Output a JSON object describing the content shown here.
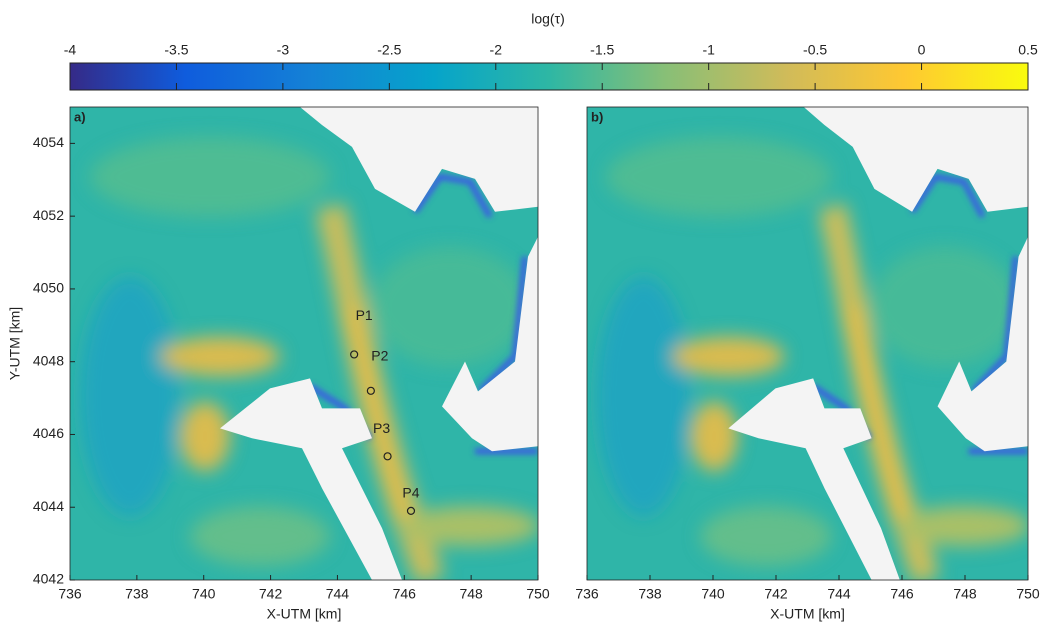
{
  "colorbar": {
    "label": "log(τ)",
    "lim": [
      -4,
      0.5
    ],
    "ticks": [
      -4,
      -3.5,
      -3,
      -2.5,
      -2,
      -1.5,
      -1,
      -0.5,
      0,
      0.5
    ]
  },
  "chart_data": [
    {
      "type": "heatmap",
      "panel_label": "a)",
      "xlabel": "X-UTM [km]",
      "ylabel": "Y-UTM [km]",
      "xlim": [
        736,
        750
      ],
      "ylim": [
        4042,
        4055
      ],
      "xticks": [
        736,
        738,
        740,
        742,
        744,
        746,
        748,
        750
      ],
      "yticks": [
        4042,
        4044,
        4046,
        4048,
        4050,
        4052,
        4054
      ],
      "points": {
        "labels": [
          "P1",
          "P2",
          "P3",
          "P4"
        ],
        "x": [
          744.5,
          745.0,
          745.5,
          746.2
        ],
        "y": [
          4048.2,
          4047.2,
          4045.4,
          4043.9
        ]
      }
    },
    {
      "type": "heatmap",
      "panel_label": "b)",
      "xlabel": "X-UTM [km]",
      "xlim": [
        736,
        750
      ],
      "ylim": [
        4042,
        4055
      ],
      "xticks": [
        736,
        738,
        740,
        742,
        744,
        746,
        748,
        750
      ]
    }
  ]
}
